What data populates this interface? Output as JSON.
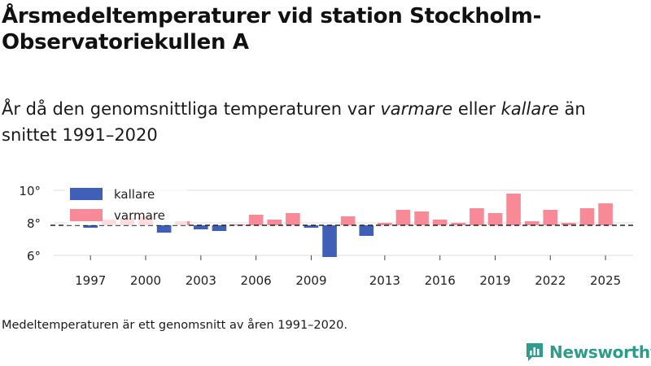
{
  "title": "Årsmedeltemperaturer vid station Stockholm-Observatoriekullen A",
  "subtitle": {
    "part1": "År då den genomsnittliga temperaturen var ",
    "warmer_word": "varmare",
    "part2": " eller ",
    "colder_word": "kallare",
    "part3": " än snittet 1991–2020"
  },
  "note": "Medeltemperaturen är ett genomsnitt av åren 1991–2020.",
  "brand": "Newsworthy",
  "colors": {
    "colder": "#4060b8",
    "warmer": "#f88a98",
    "baseline": "#222222"
  },
  "chart_data": {
    "type": "bar",
    "title": "Årsmedeltemperaturer vid station Stockholm-Observatoriekullen A",
    "xlabel": "",
    "ylabel": "",
    "baseline": 7.85,
    "ylim": [
      6,
      10
    ],
    "yticks": [
      6,
      8,
      10
    ],
    "ytick_labels": [
      "6°",
      "8°",
      "10°"
    ],
    "xlim": [
      1995,
      2026.5
    ],
    "xticks": [
      1997,
      2000,
      2003,
      2006,
      2009,
      2013,
      2016,
      2019,
      2022,
      2025
    ],
    "legend": [
      {
        "key": "colder",
        "label": "kallare"
      },
      {
        "key": "warmer",
        "label": "varmare"
      }
    ],
    "legend_position": "top-left",
    "years": [
      1997,
      1998,
      1999,
      2000,
      2001,
      2002,
      2003,
      2004,
      2005,
      2006,
      2007,
      2008,
      2009,
      2010,
      2011,
      2012,
      2013,
      2014,
      2015,
      2016,
      2017,
      2018,
      2019,
      2020,
      2021,
      2022,
      2023,
      2024,
      2025
    ],
    "values": [
      7.7,
      8.2,
      8.3,
      8.4,
      7.4,
      8.1,
      7.6,
      7.5,
      7.9,
      8.5,
      8.2,
      8.6,
      7.7,
      5.9,
      8.4,
      7.2,
      8.0,
      8.8,
      8.7,
      8.2,
      8.0,
      8.9,
      8.6,
      9.8,
      8.1,
      8.8,
      8.0,
      8.9,
      9.2
    ]
  }
}
